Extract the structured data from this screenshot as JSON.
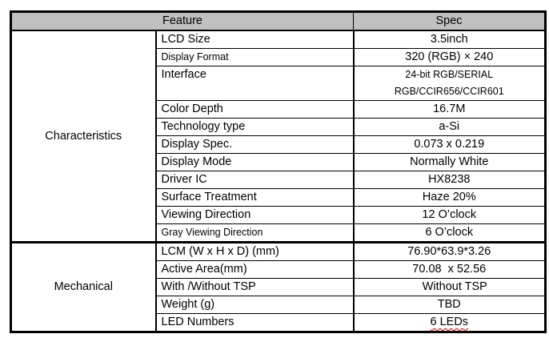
{
  "header": {
    "feature": "Feature",
    "spec": "Spec"
  },
  "groups": [
    {
      "name": "Characteristics",
      "rows": [
        {
          "feature": "LCD Size",
          "spec": "3.5inch"
        },
        {
          "feature": "Display Format",
          "spec": "320 (RGB) × 240"
        },
        {
          "feature": "Interface",
          "spec": "24-bit RGB/SERIAL",
          "spec2": "RGB/CCIR656/CCIR601"
        },
        {
          "feature": "Color Depth",
          "spec": "16.7M"
        },
        {
          "feature": "Technology type",
          "spec": "a-Si"
        },
        {
          "feature": "Display Spec.",
          "spec": "0.073 x 0.219"
        },
        {
          "feature": "Display Mode",
          "spec": "Normally White"
        },
        {
          "feature": "Driver IC",
          "spec": "HX8238"
        },
        {
          "feature": "Surface Treatment",
          "spec": "Haze 20%"
        },
        {
          "feature": "Viewing Direction",
          "spec": "12 O’clock"
        },
        {
          "feature": "Gray Viewing Direction",
          "spec": "6 O’clock"
        }
      ]
    },
    {
      "name": "Mechanical",
      "rows": [
        {
          "feature": "LCM (W x H x D) (mm)",
          "spec": "76.90*63.9*3.26"
        },
        {
          "feature": "Active Area(mm)",
          "spec": "70.08  x 52.56"
        },
        {
          "feature": "With /Without TSP",
          "spec": "Without TSP"
        },
        {
          "feature": "Weight (g)",
          "spec": "TBD"
        },
        {
          "feature": "LED Numbers",
          "spec": "6 LEDs"
        }
      ]
    }
  ]
}
